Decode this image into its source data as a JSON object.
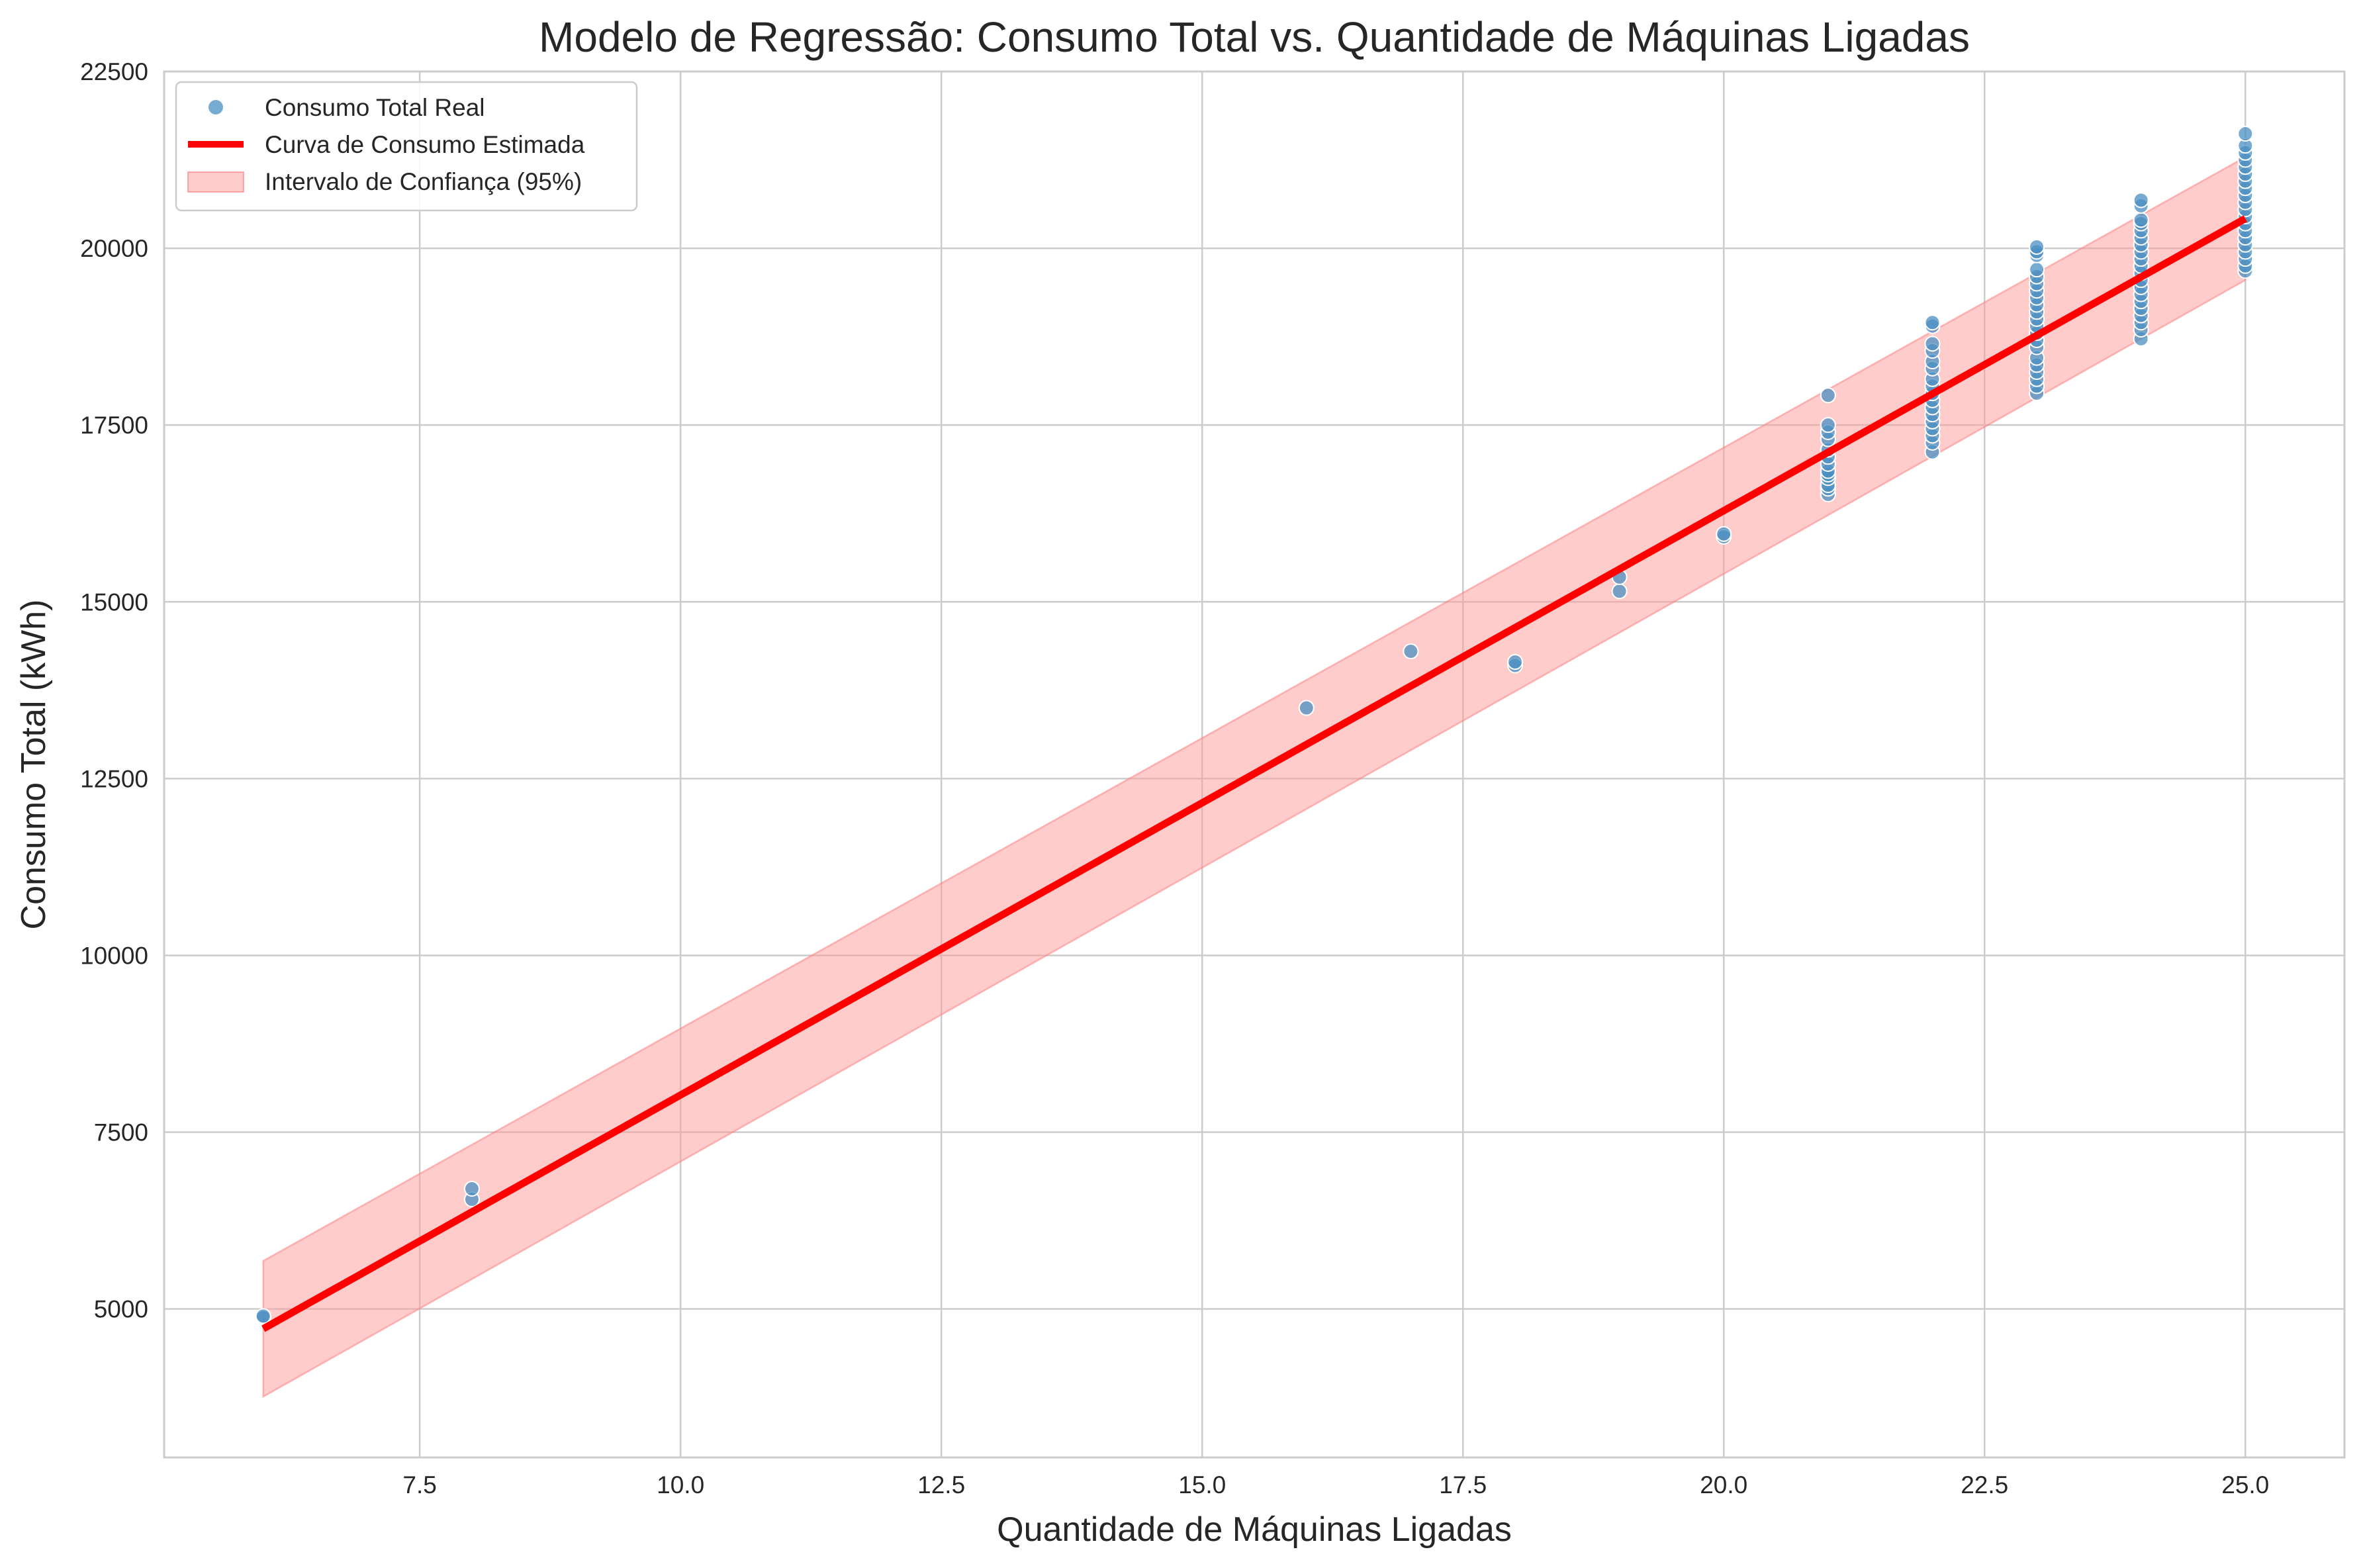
{
  "chart_data": {
    "type": "scatter",
    "title": "Modelo de Regressão: Consumo Total vs. Quantidade de Máquinas Ligadas",
    "xlabel": "Quantidade de Máquinas Ligadas",
    "ylabel": "Consumo Total (kWh)",
    "xlim": [
      5.05,
      25.95
    ],
    "ylim": [
      2900,
      22500
    ],
    "xticks": [
      7.5,
      10.0,
      12.5,
      15.0,
      17.5,
      20.0,
      22.5,
      25.0
    ],
    "xtick_labels": [
      "7.5",
      "10.0",
      "12.5",
      "15.0",
      "17.5",
      "20.0",
      "22.5",
      "25.0"
    ],
    "yticks": [
      5000,
      7500,
      10000,
      12500,
      15000,
      17500,
      20000,
      22500
    ],
    "ytick_labels": [
      "5000",
      "7500",
      "10000",
      "12500",
      "15000",
      "17500",
      "20000",
      "22500"
    ],
    "grid": true,
    "legend_position": "top-left",
    "legend": [
      {
        "label": "Consumo Total Real",
        "kind": "marker"
      },
      {
        "label": "Curva de Consumo Estimada",
        "kind": "line"
      },
      {
        "label": "Intervalo de Confiança (95%)",
        "kind": "band"
      }
    ],
    "series": [
      {
        "name": "Consumo Total Real",
        "kind": "scatter",
        "color": "#4a8fc2",
        "points": [
          [
            6,
            4880
          ],
          [
            6,
            4900
          ],
          [
            8,
            6550
          ],
          [
            8,
            6700
          ],
          [
            16,
            13500
          ],
          [
            17,
            14300
          ],
          [
            18,
            14100
          ],
          [
            18,
            14150
          ],
          [
            19,
            15150
          ],
          [
            19,
            15350
          ],
          [
            20,
            15920
          ],
          [
            20,
            15960
          ],
          [
            21,
            16520
          ],
          [
            21,
            16600
          ],
          [
            21,
            16650
          ],
          [
            21,
            16750
          ],
          [
            21,
            16800
          ],
          [
            21,
            16850
          ],
          [
            21,
            16950
          ],
          [
            21,
            17050
          ],
          [
            21,
            17150
          ],
          [
            21,
            17300
          ],
          [
            21,
            17400
          ],
          [
            21,
            17500
          ],
          [
            21,
            17920
          ],
          [
            22,
            17120
          ],
          [
            22,
            17250
          ],
          [
            22,
            17350
          ],
          [
            22,
            17450
          ],
          [
            22,
            17550
          ],
          [
            22,
            17650
          ],
          [
            22,
            17750
          ],
          [
            22,
            17850
          ],
          [
            22,
            17950
          ],
          [
            22,
            18050
          ],
          [
            22,
            18150
          ],
          [
            22,
            18300
          ],
          [
            22,
            18400
          ],
          [
            22,
            18550
          ],
          [
            22,
            18650
          ],
          [
            22,
            18900
          ],
          [
            22,
            18950
          ],
          [
            23,
            17950
          ],
          [
            23,
            18050
          ],
          [
            23,
            18150
          ],
          [
            23,
            18250
          ],
          [
            23,
            18350
          ],
          [
            23,
            18450
          ],
          [
            23,
            18600
          ],
          [
            23,
            18700
          ],
          [
            23,
            18800
          ],
          [
            23,
            18900
          ],
          [
            23,
            19000
          ],
          [
            23,
            19100
          ],
          [
            23,
            19200
          ],
          [
            23,
            19300
          ],
          [
            23,
            19400
          ],
          [
            23,
            19500
          ],
          [
            23,
            19600
          ],
          [
            23,
            19700
          ],
          [
            23,
            19900
          ],
          [
            23,
            19950
          ],
          [
            23,
            20020
          ],
          [
            24,
            18720
          ],
          [
            24,
            18850
          ],
          [
            24,
            18950
          ],
          [
            24,
            19050
          ],
          [
            24,
            19150
          ],
          [
            24,
            19250
          ],
          [
            24,
            19350
          ],
          [
            24,
            19450
          ],
          [
            24,
            19550
          ],
          [
            24,
            19650
          ],
          [
            24,
            19750
          ],
          [
            24,
            19850
          ],
          [
            24,
            19950
          ],
          [
            24,
            20050
          ],
          [
            24,
            20150
          ],
          [
            24,
            20250
          ],
          [
            24,
            20350
          ],
          [
            24,
            20400
          ],
          [
            24,
            20600
          ],
          [
            24,
            20680
          ],
          [
            25,
            19680
          ],
          [
            25,
            19750
          ],
          [
            25,
            19850
          ],
          [
            25,
            19950
          ],
          [
            25,
            20050
          ],
          [
            25,
            20150
          ],
          [
            25,
            20250
          ],
          [
            25,
            20350
          ],
          [
            25,
            20450
          ],
          [
            25,
            20550
          ],
          [
            25,
            20650
          ],
          [
            25,
            20750
          ],
          [
            25,
            20850
          ],
          [
            25,
            20950
          ],
          [
            25,
            21050
          ],
          [
            25,
            21150
          ],
          [
            25,
            21250
          ],
          [
            25,
            21350
          ],
          [
            25,
            21450
          ],
          [
            25,
            21620
          ]
        ]
      },
      {
        "name": "Curva de Consumo Estimada",
        "kind": "line",
        "color": "#ff0000",
        "x": [
          6,
          25
        ],
        "y": [
          4720,
          20420
        ]
      },
      {
        "name": "Intervalo de Confiança (95%)",
        "kind": "band",
        "color": "#ff9999",
        "x": [
          6,
          25
        ],
        "lower": [
          3760,
          19550
        ],
        "upper": [
          5680,
          21290
        ]
      }
    ]
  }
}
